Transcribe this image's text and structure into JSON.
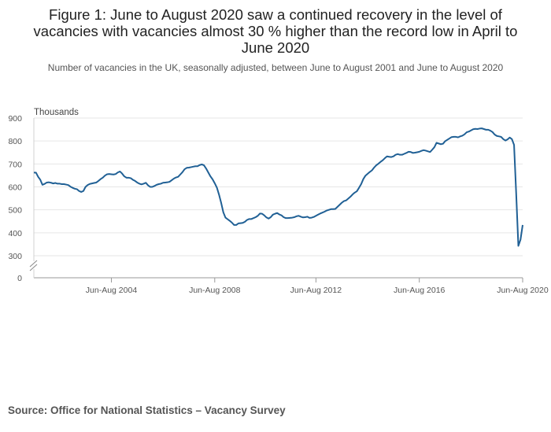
{
  "title": "Figure 1: June to August 2020 saw a continued recovery in the level of vacancies with vacancies almost 30 % higher than the record low in April to June 2020",
  "subtitle": "Number of vacancies in the UK, seasonally adjusted, between June to August 2001 and June to August 2020",
  "source": "Source: Office for National Statistics – Vacancy Survey",
  "chart_data": {
    "type": "line",
    "ylabel": "Thousands",
    "ylim": [
      0,
      900
    ],
    "y_axis_break": true,
    "yticks": [
      "900",
      "800",
      "700",
      "600",
      "500",
      "400",
      "300",
      "0"
    ],
    "xticks": [
      "Jun-Aug 2004",
      "Jun-Aug 2008",
      "Jun-Aug 2012",
      "Jun-Aug 2016",
      "Jun-Aug 2020"
    ],
    "grid": true,
    "line_color": "#206095",
    "series": [
      {
        "x_start": "Jun-Aug 2001",
        "x_end": "Jun-Aug 2020",
        "values": [
          662,
          662,
          644,
          631,
          609,
          613,
          619,
          620,
          618,
          615,
          617,
          614,
          614,
          612,
          612,
          610,
          608,
          601,
          596,
          592,
          590,
          582,
          578,
          582,
          600,
          608,
          613,
          615,
          617,
          619,
          626,
          634,
          640,
          649,
          655,
          656,
          655,
          654,
          656,
          663,
          667,
          658,
          646,
          640,
          640,
          638,
          631,
          626,
          619,
          614,
          611,
          614,
          618,
          607,
          600,
          600,
          604,
          609,
          612,
          614,
          618,
          619,
          620,
          622,
          629,
          636,
          641,
          644,
          654,
          664,
          677,
          683,
          684,
          686,
          688,
          690,
          690,
          695,
          698,
          694,
          680,
          663,
          646,
          633,
          616,
          597,
          566,
          530,
          489,
          466,
          459,
          452,
          444,
          434,
          434,
          441,
          442,
          443,
          448,
          456,
          460,
          460,
          464,
          468,
          474,
          484,
          483,
          476,
          467,
          462,
          468,
          479,
          483,
          486,
          480,
          476,
          468,
          464,
          464,
          465,
          466,
          468,
          472,
          474,
          470,
          467,
          468,
          470,
          465,
          466,
          469,
          474,
          479,
          484,
          488,
          492,
          497,
          500,
          503,
          503,
          504,
          513,
          522,
          531,
          538,
          541,
          549,
          557,
          567,
          575,
          581,
          596,
          612,
          634,
          649,
          657,
          665,
          672,
          684,
          694,
          701,
          709,
          716,
          725,
          733,
          731,
          730,
          733,
          740,
          743,
          740,
          740,
          744,
          748,
          753,
          752,
          748,
          749,
          751,
          753,
          757,
          760,
          758,
          755,
          752,
          762,
          773,
          792,
          789,
          786,
          788,
          799,
          805,
          811,
          817,
          818,
          818,
          816,
          820,
          823,
          829,
          838,
          841,
          846,
          851,
          853,
          852,
          854,
          855,
          852,
          849,
          849,
          845,
          839,
          828,
          822,
          820,
          818,
          808,
          802,
          807,
          815,
          808,
          783,
          570,
          343,
          370,
          434
        ]
      }
    ]
  }
}
